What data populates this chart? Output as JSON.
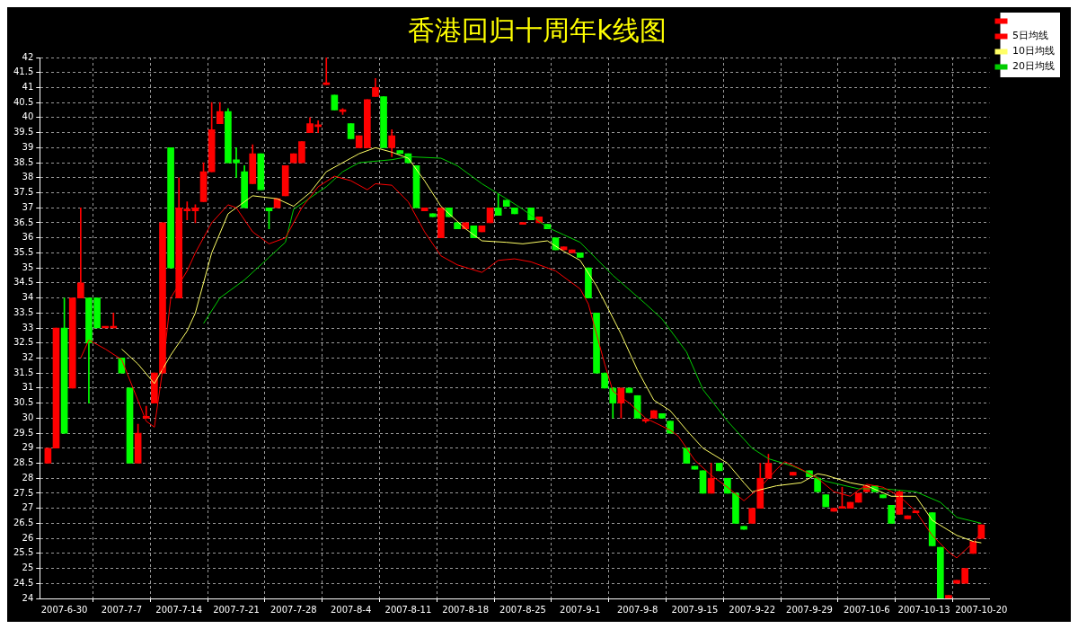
{
  "chart_data": {
    "type": "candlestick",
    "title": "香港回归十周年k线图",
    "x": [
      "2007-06-28",
      "2007-06-29",
      "2007-06-30",
      "2007-07-01",
      "2007-07-02",
      "2007-07-03",
      "2007-07-04",
      "2007-07-05",
      "2007-07-06",
      "2007-07-07",
      "2007-07-08",
      "2007-07-09",
      "2007-07-10",
      "2007-07-11",
      "2007-07-12",
      "2007-07-13",
      "2007-07-14",
      "2007-07-15",
      "2007-07-16",
      "2007-07-17",
      "2007-07-18",
      "2007-07-19",
      "2007-07-20",
      "2007-07-21",
      "2007-07-22",
      "2007-07-23",
      "2007-07-24",
      "2007-07-25",
      "2007-07-26",
      "2007-07-27",
      "2007-07-28",
      "2007-07-29",
      "2007-07-30",
      "2007-07-31",
      "2007-08-01",
      "2007-08-02",
      "2007-08-03",
      "2007-08-04",
      "2007-08-05",
      "2007-08-06",
      "2007-08-07",
      "2007-08-08",
      "2007-08-09",
      "2007-08-10",
      "2007-08-11",
      "2007-08-12",
      "2007-08-13",
      "2007-08-14",
      "2007-08-15",
      "2007-08-16",
      "2007-08-17",
      "2007-08-18",
      "2007-08-19",
      "2007-08-20",
      "2007-08-21",
      "2007-08-22",
      "2007-08-23",
      "2007-08-24",
      "2007-08-25",
      "2007-08-26",
      "2007-08-27",
      "2007-08-28",
      "2007-08-29",
      "2007-08-30",
      "2007-08-31",
      "2007-09-01",
      "2007-09-02",
      "2007-09-03",
      "2007-09-04",
      "2007-09-05",
      "2007-09-06",
      "2007-09-07",
      "2007-09-08",
      "2007-09-09",
      "2007-09-10",
      "2007-09-11",
      "2007-09-12",
      "2007-09-14",
      "2007-09-15",
      "2007-09-16",
      "2007-09-17",
      "2007-09-18",
      "2007-09-19",
      "2007-09-20",
      "2007-09-21",
      "2007-09-22",
      "2007-09-23",
      "2007-09-24",
      "2007-09-27",
      "2007-09-29",
      "2007-09-30",
      "2007-10-01",
      "2007-10-02",
      "2007-10-03",
      "2007-10-04",
      "2007-10-05",
      "2007-10-06",
      "2007-10-07",
      "2007-10-08",
      "2007-10-09",
      "2007-10-10",
      "2007-10-11",
      "2007-10-12",
      "2007-10-14",
      "2007-10-15",
      "2007-10-16",
      "2007-10-17",
      "2007-10-18",
      "2007-10-19",
      "2007-10-20"
    ],
    "ohlc": [
      [
        28.5,
        29.0,
        28.5,
        29.0
      ],
      [
        29.0,
        33.0,
        29.0,
        33.0
      ],
      [
        33.0,
        34.0,
        29.5,
        29.5
      ],
      [
        31.0,
        34.0,
        31.0,
        34.0
      ],
      [
        34.0,
        37.0,
        34.0,
        34.5
      ],
      [
        34.0,
        34.0,
        30.5,
        32.5
      ],
      [
        34.0,
        34.0,
        33.0,
        33.0
      ],
      [
        33.0,
        33.0,
        33.0,
        33.0
      ],
      [
        33.0,
        33.5,
        33.0,
        33.0
      ],
      [
        32.0,
        32.0,
        31.5,
        31.5
      ],
      [
        31.0,
        31.0,
        28.5,
        28.5
      ],
      [
        28.5,
        29.8,
        28.5,
        29.5
      ],
      [
        30.0,
        30.4,
        30.0,
        30.0
      ],
      [
        30.5,
        31.5,
        30.5,
        31.5
      ],
      [
        31.5,
        36.5,
        31.5,
        36.5
      ],
      [
        39.0,
        39.0,
        35.0,
        35.0
      ],
      [
        34.0,
        38.0,
        34.0,
        37.0
      ],
      [
        36.9,
        37.2,
        36.6,
        36.9
      ],
      [
        36.9,
        37.1,
        36.5,
        37.0
      ],
      [
        37.2,
        38.5,
        37.2,
        38.2
      ],
      [
        38.2,
        40.5,
        38.2,
        39.6
      ],
      [
        39.8,
        40.5,
        39.8,
        40.2
      ],
      [
        40.2,
        40.3,
        38.5,
        38.5
      ],
      [
        38.6,
        39.0,
        38.0,
        38.5
      ],
      [
        38.2,
        38.4,
        37.0,
        37.0
      ],
      [
        37.8,
        39.1,
        37.8,
        38.8
      ],
      [
        38.8,
        38.8,
        37.6,
        37.6
      ],
      [
        37.0,
        37.0,
        36.3,
        36.9
      ],
      [
        37.0,
        37.3,
        37.0,
        37.3
      ],
      [
        37.4,
        38.4,
        37.4,
        38.4
      ],
      [
        38.5,
        38.8,
        38.5,
        38.8
      ],
      [
        38.5,
        39.2,
        38.5,
        39.2
      ],
      [
        39.5,
        40.0,
        39.5,
        39.8
      ],
      [
        39.7,
        39.9,
        39.5,
        39.7
      ],
      [
        41.1,
        42.0,
        41.1,
        41.1
      ],
      [
        40.75,
        40.75,
        40.25,
        40.25
      ],
      [
        40.2,
        40.3,
        40.1,
        40.2
      ],
      [
        39.8,
        39.8,
        39.3,
        39.3
      ],
      [
        39.0,
        39.4,
        39.0,
        39.4
      ],
      [
        39.0,
        40.6,
        39.0,
        40.6
      ],
      [
        40.7,
        41.3,
        40.7,
        41.0
      ],
      [
        40.7,
        40.7,
        39.0,
        39.0
      ],
      [
        39.0,
        39.6,
        38.7,
        39.4
      ],
      [
        38.9,
        38.9,
        38.8,
        38.8
      ],
      [
        38.8,
        38.8,
        38.5,
        38.5
      ],
      [
        38.4,
        38.4,
        37.0,
        37.0
      ],
      [
        36.9,
        37.0,
        36.9,
        37.0
      ],
      [
        36.8,
        36.8,
        36.7,
        36.7
      ],
      [
        36.0,
        37.0,
        36.0,
        37.0
      ],
      [
        37.0,
        37.0,
        36.7,
        36.7
      ],
      [
        36.5,
        36.5,
        36.3,
        36.3
      ],
      [
        36.3,
        36.5,
        36.3,
        36.5
      ],
      [
        36.4,
        36.4,
        36.0,
        36.0
      ],
      [
        36.2,
        36.4,
        36.2,
        36.4
      ],
      [
        36.5,
        37.0,
        36.5,
        37.0
      ],
      [
        37.0,
        37.45,
        36.75,
        36.75
      ],
      [
        37.25,
        37.25,
        37.05,
        37.05
      ],
      [
        37.0,
        37.0,
        36.8,
        36.8
      ],
      [
        36.45,
        36.5,
        36.45,
        36.5
      ],
      [
        37.0,
        37.0,
        36.6,
        36.6
      ],
      [
        36.5,
        36.7,
        36.5,
        36.7
      ],
      [
        36.45,
        36.45,
        36.3,
        36.3
      ],
      [
        36.0,
        36.0,
        35.6,
        35.6
      ],
      [
        35.6,
        35.7,
        35.6,
        35.7
      ],
      [
        35.5,
        35.6,
        35.5,
        35.6
      ],
      [
        35.5,
        35.5,
        35.35,
        35.35
      ],
      [
        35.0,
        35.0,
        34.0,
        34.0
      ],
      [
        33.5,
        33.5,
        31.5,
        31.5
      ],
      [
        31.5,
        31.5,
        31.0,
        31.0
      ],
      [
        31.0,
        31.0,
        30.0,
        30.5
      ],
      [
        30.5,
        31.0,
        30.0,
        31.0
      ],
      [
        31.0,
        31.0,
        30.85,
        30.85
      ],
      [
        30.75,
        30.75,
        30.0,
        30.0
      ],
      [
        29.9,
        29.95,
        29.85,
        29.9
      ],
      [
        30.0,
        30.25,
        30.0,
        30.25
      ],
      [
        30.15,
        30.15,
        30.0,
        30.0
      ],
      [
        29.9,
        29.9,
        29.5,
        29.5
      ],
      [
        29.0,
        29.0,
        28.5,
        28.5
      ],
      [
        28.4,
        28.4,
        28.3,
        28.3
      ],
      [
        28.25,
        28.25,
        27.5,
        27.5
      ],
      [
        27.5,
        28.5,
        27.5,
        28.0
      ],
      [
        28.5,
        28.5,
        28.25,
        28.25
      ],
      [
        28.0,
        28.0,
        27.5,
        27.5
      ],
      [
        27.5,
        27.5,
        26.5,
        26.5
      ],
      [
        26.4,
        26.4,
        26.3,
        26.3
      ],
      [
        26.5,
        27.0,
        26.5,
        27.0
      ],
      [
        27.0,
        28.5,
        27.0,
        28.0
      ],
      [
        28.0,
        28.8,
        28.0,
        28.5
      ],
      [
        28.1,
        28.2,
        28.1,
        28.2
      ],
      [
        28.25,
        28.25,
        28.05,
        28.05
      ],
      [
        28.0,
        28.0,
        27.55,
        27.55
      ],
      [
        27.45,
        27.45,
        27.05,
        27.05
      ],
      [
        26.9,
        27.0,
        26.9,
        27.0
      ],
      [
        27.0,
        27.7,
        27.0,
        27.0
      ],
      [
        27.0,
        27.2,
        27.0,
        27.2
      ],
      [
        27.2,
        27.5,
        27.2,
        27.5
      ],
      [
        27.55,
        27.75,
        27.55,
        27.75
      ],
      [
        27.75,
        27.75,
        27.55,
        27.55
      ],
      [
        27.45,
        27.45,
        27.35,
        27.35
      ],
      [
        27.1,
        27.1,
        26.5,
        26.5
      ],
      [
        26.8,
        27.6,
        26.8,
        27.55
      ],
      [
        26.65,
        26.75,
        26.65,
        26.75
      ],
      [
        26.85,
        26.9,
        26.85,
        26.9
      ],
      [
        26.85,
        26.85,
        25.75,
        25.75
      ],
      [
        25.7,
        25.7,
        24.0,
        24.0
      ],
      [
        24.0,
        24.1,
        24.0,
        24.1
      ],
      [
        24.5,
        24.6,
        24.5,
        24.6
      ],
      [
        24.5,
        25.0,
        24.5,
        25.0
      ],
      [
        25.5,
        25.9,
        25.5,
        25.9
      ],
      [
        26.0,
        26.45,
        26.0,
        26.45
      ]
    ],
    "colors": [
      "#ff0000",
      "#ff0000",
      "#00ff00",
      "#ff0000",
      "#ff0000",
      "#00ff00",
      "#00ff00",
      "#ff0000",
      "#ff0000",
      "#00ff00",
      "#00ff00",
      "#ff0000",
      "#ff0000",
      "#ff0000",
      "#ff0000",
      "#00ff00",
      "#ff0000",
      "#ff0000",
      "#ff0000",
      "#ff0000",
      "#ff0000",
      "#ff0000",
      "#00ff00",
      "#00ff00",
      "#00ff00",
      "#ff0000",
      "#00ff00",
      "#00ff00",
      "#ff0000",
      "#ff0000",
      "#ff0000",
      "#ff0000",
      "#ff0000",
      "#ff0000",
      "#ff0000",
      "#00ff00",
      "#ff0000",
      "#00ff00",
      "#ff0000",
      "#ff0000",
      "#ff0000",
      "#00ff00",
      "#ff0000",
      "#00ff00",
      "#00ff00",
      "#00ff00",
      "#ff0000",
      "#00ff00",
      "#ff0000",
      "#00ff00",
      "#00ff00",
      "#ff0000",
      "#00ff00",
      "#ff0000",
      "#ff0000",
      "#00ff00",
      "#00ff00",
      "#00ff00",
      "#ff0000",
      "#00ff00",
      "#ff0000",
      "#00ff00",
      "#00ff00",
      "#ff0000",
      "#ff0000",
      "#00ff00",
      "#00ff00",
      "#00ff00",
      "#00ff00",
      "#00ff00",
      "#ff0000",
      "#00ff00",
      "#00ff00",
      "#ff0000",
      "#ff0000",
      "#00ff00",
      "#00ff00",
      "#00ff00",
      "#00ff00",
      "#00ff00",
      "#ff0000",
      "#00ff00",
      "#00ff00",
      "#00ff00",
      "#00ff00",
      "#ff0000",
      "#ff0000",
      "#ff0000",
      "#ff0000",
      "#00ff00",
      "#00ff00",
      "#00ff00",
      "#ff0000",
      "#ff0000",
      "#ff0000",
      "#ff0000",
      "#ff0000",
      "#00ff00",
      "#00ff00",
      "#00ff00",
      "#ff0000",
      "#ff0000",
      "#ff0000",
      "#00ff00",
      "#00ff00",
      "#ff0000",
      "#ff0000",
      "#ff0000",
      "#ff0000",
      "#ff0000"
    ],
    "series": [
      {
        "type": "line",
        "name": "5日均线",
        "color": "#ff0000",
        "x": [
          "2007-07-02",
          "2007-07-03",
          "2007-07-05",
          "2007-07-07",
          "2007-07-10",
          "2007-07-11",
          "2007-07-12",
          "2007-07-13",
          "2007-07-15",
          "2007-07-16",
          "2007-07-18",
          "2007-07-20",
          "2007-07-21",
          "2007-07-23",
          "2007-07-25",
          "2007-07-27",
          "2007-07-29",
          "2007-07-31",
          "2007-08-02",
          "2007-08-04",
          "2007-08-06",
          "2007-08-07",
          "2007-08-09",
          "2007-08-11",
          "2007-08-13",
          "2007-08-15",
          "2007-08-17",
          "2007-08-20",
          "2007-08-22",
          "2007-08-24",
          "2007-08-26",
          "2007-08-29",
          "2007-09-01",
          "2007-09-02",
          "2007-09-04",
          "2007-09-05",
          "2007-09-07",
          "2007-09-09",
          "2007-09-12",
          "2007-09-13",
          "2007-09-15",
          "2007-09-17",
          "2007-09-19",
          "2007-09-21",
          "2007-09-23",
          "2007-09-25",
          "2007-09-26",
          "2007-09-28",
          "2007-09-30",
          "2007-10-02",
          "2007-10-04",
          "2007-10-06",
          "2007-10-08",
          "2007-10-10",
          "2007-10-12",
          "2007-10-14",
          "2007-10-16",
          "2007-10-17",
          "2007-10-19",
          "2007-10-20"
        ],
        "values": [
          32.0,
          32.6,
          32.3,
          31.95,
          29.9,
          29.7,
          31.6,
          34.0,
          34.9,
          35.5,
          36.5,
          37.1,
          37.0,
          36.2,
          35.8,
          36.0,
          37.0,
          37.7,
          38.05,
          37.9,
          37.6,
          37.8,
          37.75,
          37.2,
          36.2,
          35.4,
          35.1,
          34.85,
          35.25,
          35.3,
          35.2,
          34.9,
          34.3,
          33.8,
          31.8,
          30.9,
          30.5,
          30.0,
          29.6,
          29.4,
          28.6,
          28.1,
          27.7,
          27.25,
          27.7,
          28.3,
          28.55,
          28.3,
          28.0,
          27.55,
          27.4,
          27.8,
          27.7,
          27.4,
          26.9,
          26.1,
          25.55,
          25.35,
          25.85,
          26.2
        ]
      },
      {
        "type": "line",
        "name": "10日均线",
        "color": "#ffff66",
        "x": [
          "2007-07-07",
          "2007-07-09",
          "2007-07-11",
          "2007-07-13",
          "2007-07-15",
          "2007-07-16",
          "2007-07-18",
          "2007-07-20",
          "2007-07-22",
          "2007-07-23",
          "2007-07-26",
          "2007-07-28",
          "2007-07-30",
          "2007-08-01",
          "2007-08-04",
          "2007-08-05",
          "2007-08-07",
          "2007-08-09",
          "2007-08-11",
          "2007-08-13",
          "2007-08-15",
          "2007-08-18",
          "2007-08-20",
          "2007-08-23",
          "2007-08-25",
          "2007-08-28",
          "2007-08-30",
          "2007-09-01",
          "2007-09-03",
          "2007-09-06",
          "2007-09-08",
          "2007-09-10",
          "2007-09-12",
          "2007-09-14",
          "2007-09-16",
          "2007-09-19",
          "2007-09-21",
          "2007-09-22",
          "2007-09-25",
          "2007-09-28",
          "2007-09-30",
          "2007-10-01",
          "2007-10-04",
          "2007-10-06",
          "2007-10-09",
          "2007-10-12",
          "2007-10-14",
          "2007-10-17",
          "2007-10-19",
          "2007-10-20"
        ],
        "values": [
          32.3,
          31.8,
          31.15,
          32.1,
          32.9,
          33.5,
          35.5,
          36.8,
          37.2,
          37.4,
          37.3,
          37.05,
          37.5,
          38.2,
          38.65,
          38.8,
          39.0,
          38.85,
          38.65,
          37.9,
          37.05,
          36.3,
          35.9,
          35.85,
          35.8,
          35.9,
          35.55,
          35.25,
          34.4,
          32.8,
          31.6,
          30.6,
          30.25,
          29.6,
          29.0,
          28.5,
          27.85,
          27.55,
          27.75,
          27.85,
          28.15,
          28.1,
          27.85,
          27.75,
          27.4,
          27.4,
          26.6,
          26.1,
          25.9,
          25.85
        ]
      },
      {
        "type": "line",
        "name": "20日均线",
        "color": "#00cc00",
        "x": [
          "2007-07-17",
          "2007-07-19",
          "2007-07-22",
          "2007-07-25",
          "2007-07-27",
          "2007-07-28",
          "2007-08-01",
          "2007-08-03",
          "2007-08-05",
          "2007-08-09",
          "2007-08-11",
          "2007-08-15",
          "2007-08-17",
          "2007-08-20",
          "2007-08-23",
          "2007-08-25",
          "2007-08-28",
          "2007-08-30",
          "2007-09-01",
          "2007-09-05",
          "2007-09-09",
          "2007-09-11",
          "2007-09-14",
          "2007-09-16",
          "2007-09-19",
          "2007-09-22",
          "2007-09-24",
          "2007-09-27",
          "2007-09-29",
          "2007-10-01",
          "2007-10-05",
          "2007-10-08",
          "2007-10-12",
          "2007-10-15",
          "2007-10-17",
          "2007-10-20"
        ],
        "values": [
          33.15,
          34.0,
          34.6,
          35.35,
          35.85,
          36.95,
          37.7,
          38.2,
          38.5,
          38.6,
          38.7,
          38.65,
          38.4,
          37.8,
          37.3,
          36.95,
          36.35,
          36.1,
          35.85,
          34.75,
          33.8,
          33.3,
          32.2,
          30.95,
          29.9,
          29.0,
          28.65,
          28.4,
          28.15,
          27.9,
          27.65,
          27.65,
          27.55,
          27.2,
          26.7,
          26.5
        ]
      }
    ],
    "xlim": [
      "2007-06-27",
      "2007-10-21"
    ],
    "xticks": [
      {
        "value": "2007-06-30",
        "label": "2007-6-30"
      },
      {
        "value": "2007-07-07",
        "label": "2007-7-7"
      },
      {
        "value": "2007-07-14",
        "label": "2007-7-14"
      },
      {
        "value": "2007-07-21",
        "label": "2007-7-21"
      },
      {
        "value": "2007-07-28",
        "label": "2007-7-28"
      },
      {
        "value": "2007-08-04",
        "label": "2007-8-4"
      },
      {
        "value": "2007-08-11",
        "label": "2007-8-11"
      },
      {
        "value": "2007-08-18",
        "label": "2007-8-18"
      },
      {
        "value": "2007-08-25",
        "label": "2007-8-25"
      },
      {
        "value": "2007-09-01",
        "label": "2007-9-1"
      },
      {
        "value": "2007-09-08",
        "label": "2007-9-8"
      },
      {
        "value": "2007-09-15",
        "label": "2007-9-15"
      },
      {
        "value": "2007-09-22",
        "label": "2007-9-22"
      },
      {
        "value": "2007-09-29",
        "label": "2007-9-29"
      },
      {
        "value": "2007-10-06",
        "label": "2007-10-6"
      },
      {
        "value": "2007-10-13",
        "label": "2007-10-13"
      },
      {
        "value": "2007-10-20",
        "label": "2007-10-20"
      }
    ],
    "ylim": [
      24,
      42
    ],
    "yticks": [
      24,
      24.5,
      25,
      25.5,
      26,
      26.5,
      27,
      27.5,
      28,
      28.5,
      29,
      29.5,
      30,
      30.5,
      31,
      31.5,
      32,
      32.5,
      33,
      33.5,
      34,
      34.5,
      35,
      35.5,
      36,
      36.5,
      37,
      37.5,
      38,
      38.5,
      39,
      39.5,
      40,
      40.5,
      41,
      41.5,
      42
    ],
    "grid": true,
    "legend": "top right"
  }
}
